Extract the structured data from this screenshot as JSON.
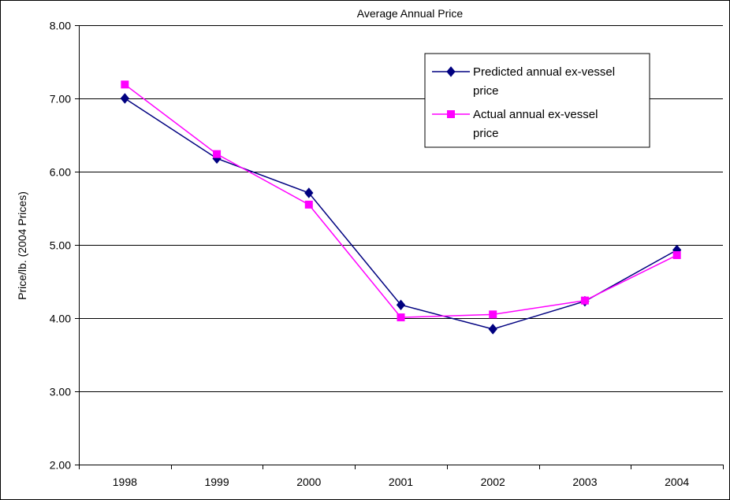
{
  "chart_data": {
    "type": "line",
    "title": "Average Annual Price",
    "xlabel": "",
    "ylabel": "Price/lb. (2004 Prices)",
    "categories": [
      "1998",
      "1999",
      "2000",
      "2001",
      "2002",
      "2003",
      "2004"
    ],
    "ylim": [
      2,
      8
    ],
    "yticks": [
      "2.00",
      "3.00",
      "4.00",
      "5.00",
      "6.00",
      "7.00",
      "8.00"
    ],
    "grid": true,
    "legend_position": "top-right",
    "series": [
      {
        "name": "Predicted annual ex-vessel price",
        "legend_lines": [
          "Predicted annual ex-vessel",
          "price"
        ],
        "color": "#000080",
        "marker": "diamond",
        "values": [
          7.0,
          6.18,
          5.71,
          4.18,
          3.85,
          4.23,
          4.93
        ]
      },
      {
        "name": "Actual annual ex-vessel price",
        "legend_lines": [
          "Actual annual ex-vessel",
          "price"
        ],
        "color": "#FF00FF",
        "marker": "square",
        "values": [
          7.19,
          6.24,
          5.55,
          4.01,
          4.05,
          4.24,
          4.86
        ]
      }
    ]
  }
}
